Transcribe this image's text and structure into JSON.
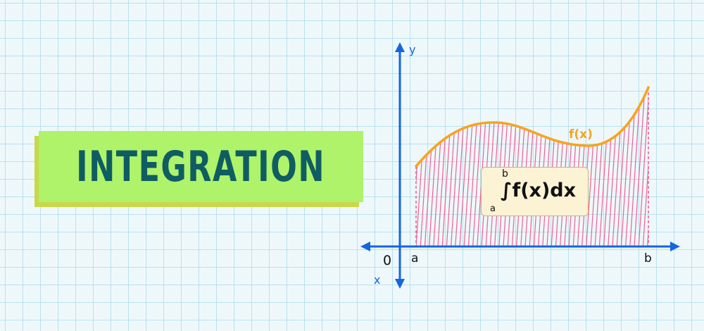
{
  "title": "INTEGRATION",
  "axes": {
    "y_label": "y",
    "x_label": "x",
    "origin_label": "0",
    "a_label": "a",
    "b_label": "b"
  },
  "curve_label": "f(x)",
  "formula": {
    "upper_limit": "b",
    "lower_limit": "a",
    "expression": "∫f(x)dx"
  },
  "colors": {
    "curve": "#f7a41d",
    "hatch": "#f06292",
    "axis": "#1565e0",
    "title_text": "#0f5d62",
    "title_bg": "#aef36a"
  }
}
